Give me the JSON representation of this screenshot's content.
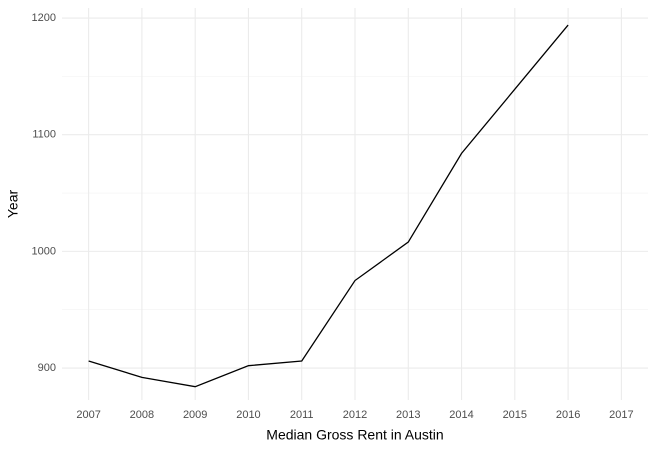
{
  "chart_data": {
    "type": "line",
    "xlabel": "Median Gross Rent in Austin",
    "ylabel": "Year",
    "x": [
      2007,
      2008,
      2009,
      2010,
      2011,
      2012,
      2013,
      2014,
      2015,
      2016
    ],
    "series": [
      {
        "color": "#000000",
        "values": [
          906,
          892,
          884,
          902,
          906,
          975,
          1008,
          1084,
          1139,
          1194
        ]
      }
    ],
    "xlim": [
      2006.5,
      2017.5
    ],
    "xticks": [
      2007,
      2008,
      2009,
      2010,
      2011,
      2012,
      2013,
      2014,
      2015,
      2016,
      2017
    ],
    "ylim": [
      872.6,
      1208.6
    ],
    "yticks": [
      900,
      1000,
      1100,
      1200
    ],
    "minor_yticks": [
      950,
      1050,
      1150
    ],
    "grid": true
  }
}
